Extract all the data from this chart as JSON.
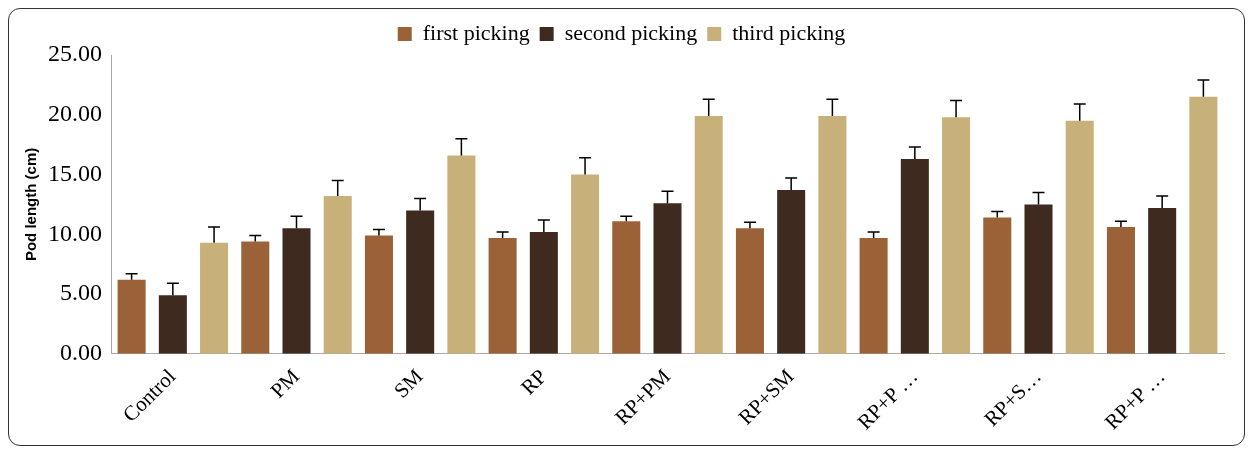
{
  "chart_data": {
    "type": "bar",
    "ylabel": "Pod length (cm)",
    "categories": [
      "Control",
      "PM",
      "SM",
      "RP",
      "RP+PM",
      "RP+SM",
      "RP+P …",
      "RP+S…",
      "RP+P …"
    ],
    "series": [
      {
        "name": "first picking",
        "color": "#9a6236",
        "values": [
          6.2,
          9.4,
          9.9,
          9.7,
          11.1,
          10.5,
          9.7,
          11.4,
          10.6
        ],
        "errors": [
          0.5,
          0.5,
          0.5,
          0.5,
          0.4,
          0.5,
          0.5,
          0.5,
          0.5
        ]
      },
      {
        "name": "second picking",
        "color": "#3e2a1e",
        "values": [
          4.9,
          10.5,
          12.0,
          10.2,
          12.6,
          13.7,
          16.3,
          12.5,
          12.2
        ],
        "errors": [
          1.0,
          1.0,
          1.0,
          1.0,
          1.0,
          1.0,
          1.0,
          1.0,
          1.0
        ]
      },
      {
        "name": "third picking",
        "color": "#c8b07a",
        "values": [
          9.3,
          13.2,
          16.6,
          15.0,
          19.9,
          19.9,
          19.8,
          19.5,
          21.5
        ],
        "errors": [
          1.3,
          1.3,
          1.4,
          1.4,
          1.4,
          1.4,
          1.4,
          1.4,
          1.4
        ]
      }
    ],
    "ylim": [
      0,
      25
    ],
    "yticks": [
      {
        "value": 0,
        "label": "0.00"
      },
      {
        "value": 5,
        "label": "5.00"
      },
      {
        "value": 10,
        "label": "10.00"
      },
      {
        "value": 15,
        "label": "15.00"
      },
      {
        "value": 20,
        "label": "20.00"
      },
      {
        "value": 25,
        "label": "25.00"
      }
    ],
    "grid": false,
    "legend": "top"
  }
}
